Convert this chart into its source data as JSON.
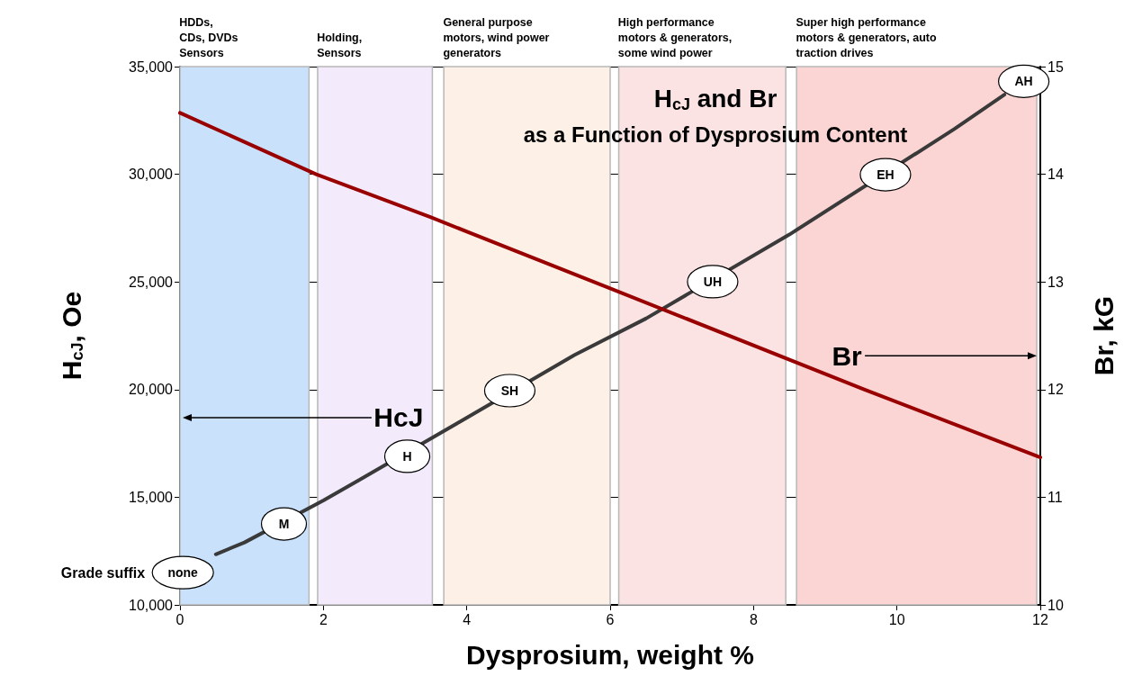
{
  "chart_data": {
    "type": "line",
    "title": "H$_{cJ}$ and Br",
    "subtitle": "as a Function of Dysprosium Content",
    "xlabel": "Dysprosium, weight %",
    "ylabel": "H$_{cJ}$, Oe",
    "y2label": "Br, kG",
    "xlim": [
      0,
      12
    ],
    "xticks": [
      0,
      2,
      4,
      6,
      8,
      10,
      12
    ],
    "ylim": [
      10000,
      35000
    ],
    "yticks": [
      {
        "value": 10000,
        "label": "10,000"
      },
      {
        "value": 15000,
        "label": "15,000"
      },
      {
        "value": 20000,
        "label": "20,000"
      },
      {
        "value": 25000,
        "label": "25,000"
      },
      {
        "value": 30000,
        "label": "30,000"
      },
      {
        "value": 35000,
        "label": "35,000"
      }
    ],
    "y2lim": [
      10,
      15
    ],
    "y2ticks": [
      10,
      11,
      12,
      13,
      14,
      15
    ],
    "grid": "y",
    "marker": "none",
    "line_style": "solid",
    "series": [
      {
        "name": "HcJ",
        "color": "#3a3a3a",
        "x": [
          0.5,
          0.9,
          2.0,
          2.5,
          3.9,
          5.5,
          6.5,
          8.5,
          10.8,
          11.5
        ],
        "values": [
          12350,
          12900,
          14850,
          15800,
          18500,
          21600,
          23300,
          27200,
          32100,
          33700
        ]
      },
      {
        "name": "Br",
        "color": "#990000",
        "axis": "y2",
        "x": [
          0,
          1.9,
          3.5,
          6,
          9.55,
          12
        ],
        "values": [
          14.57,
          14.0,
          13.6,
          12.94,
          12.0,
          11.37
        ]
      }
    ],
    "bands": [
      {
        "axis": "x",
        "from": 0,
        "to": 1.8,
        "label": "HDDs,\nCDs, DVDs\nSensors",
        "color": "#c9e1fb"
      },
      {
        "axis": "x",
        "from": 1.92,
        "to": 3.52,
        "label": "Holding,\nSensors",
        "color": "#f3eafb"
      },
      {
        "axis": "x",
        "from": 3.68,
        "to": 6.0,
        "label": "General purpose\nmotors, wind power\ngenerators",
        "color": "#fdf0e6"
      },
      {
        "axis": "x",
        "from": 6.12,
        "to": 8.45,
        "label": "High performance\nmotors & generators,\nsome wind power",
        "color": "#fbe3e3"
      },
      {
        "axis": "x",
        "from": 8.6,
        "to": 11.95,
        "label": "Super high performance\nmotors & generators, auto\ntraction drives",
        "color": "#fbd5d3"
      }
    ],
    "annotations": [
      "Grade suffix",
      {
        "text": "none",
        "x": 0.04,
        "y": 11500
      },
      {
        "text": "M",
        "x": 1.45,
        "y": 13760
      },
      {
        "text": "H",
        "x": 3.17,
        "y": 16900
      },
      {
        "text": "SH",
        "x": 4.6,
        "y": 19950
      },
      {
        "text": "UH",
        "x": 7.43,
        "y": 25010
      },
      {
        "text": "EH",
        "x": 9.84,
        "y": 29980
      },
      "AH"
    ]
  }
}
